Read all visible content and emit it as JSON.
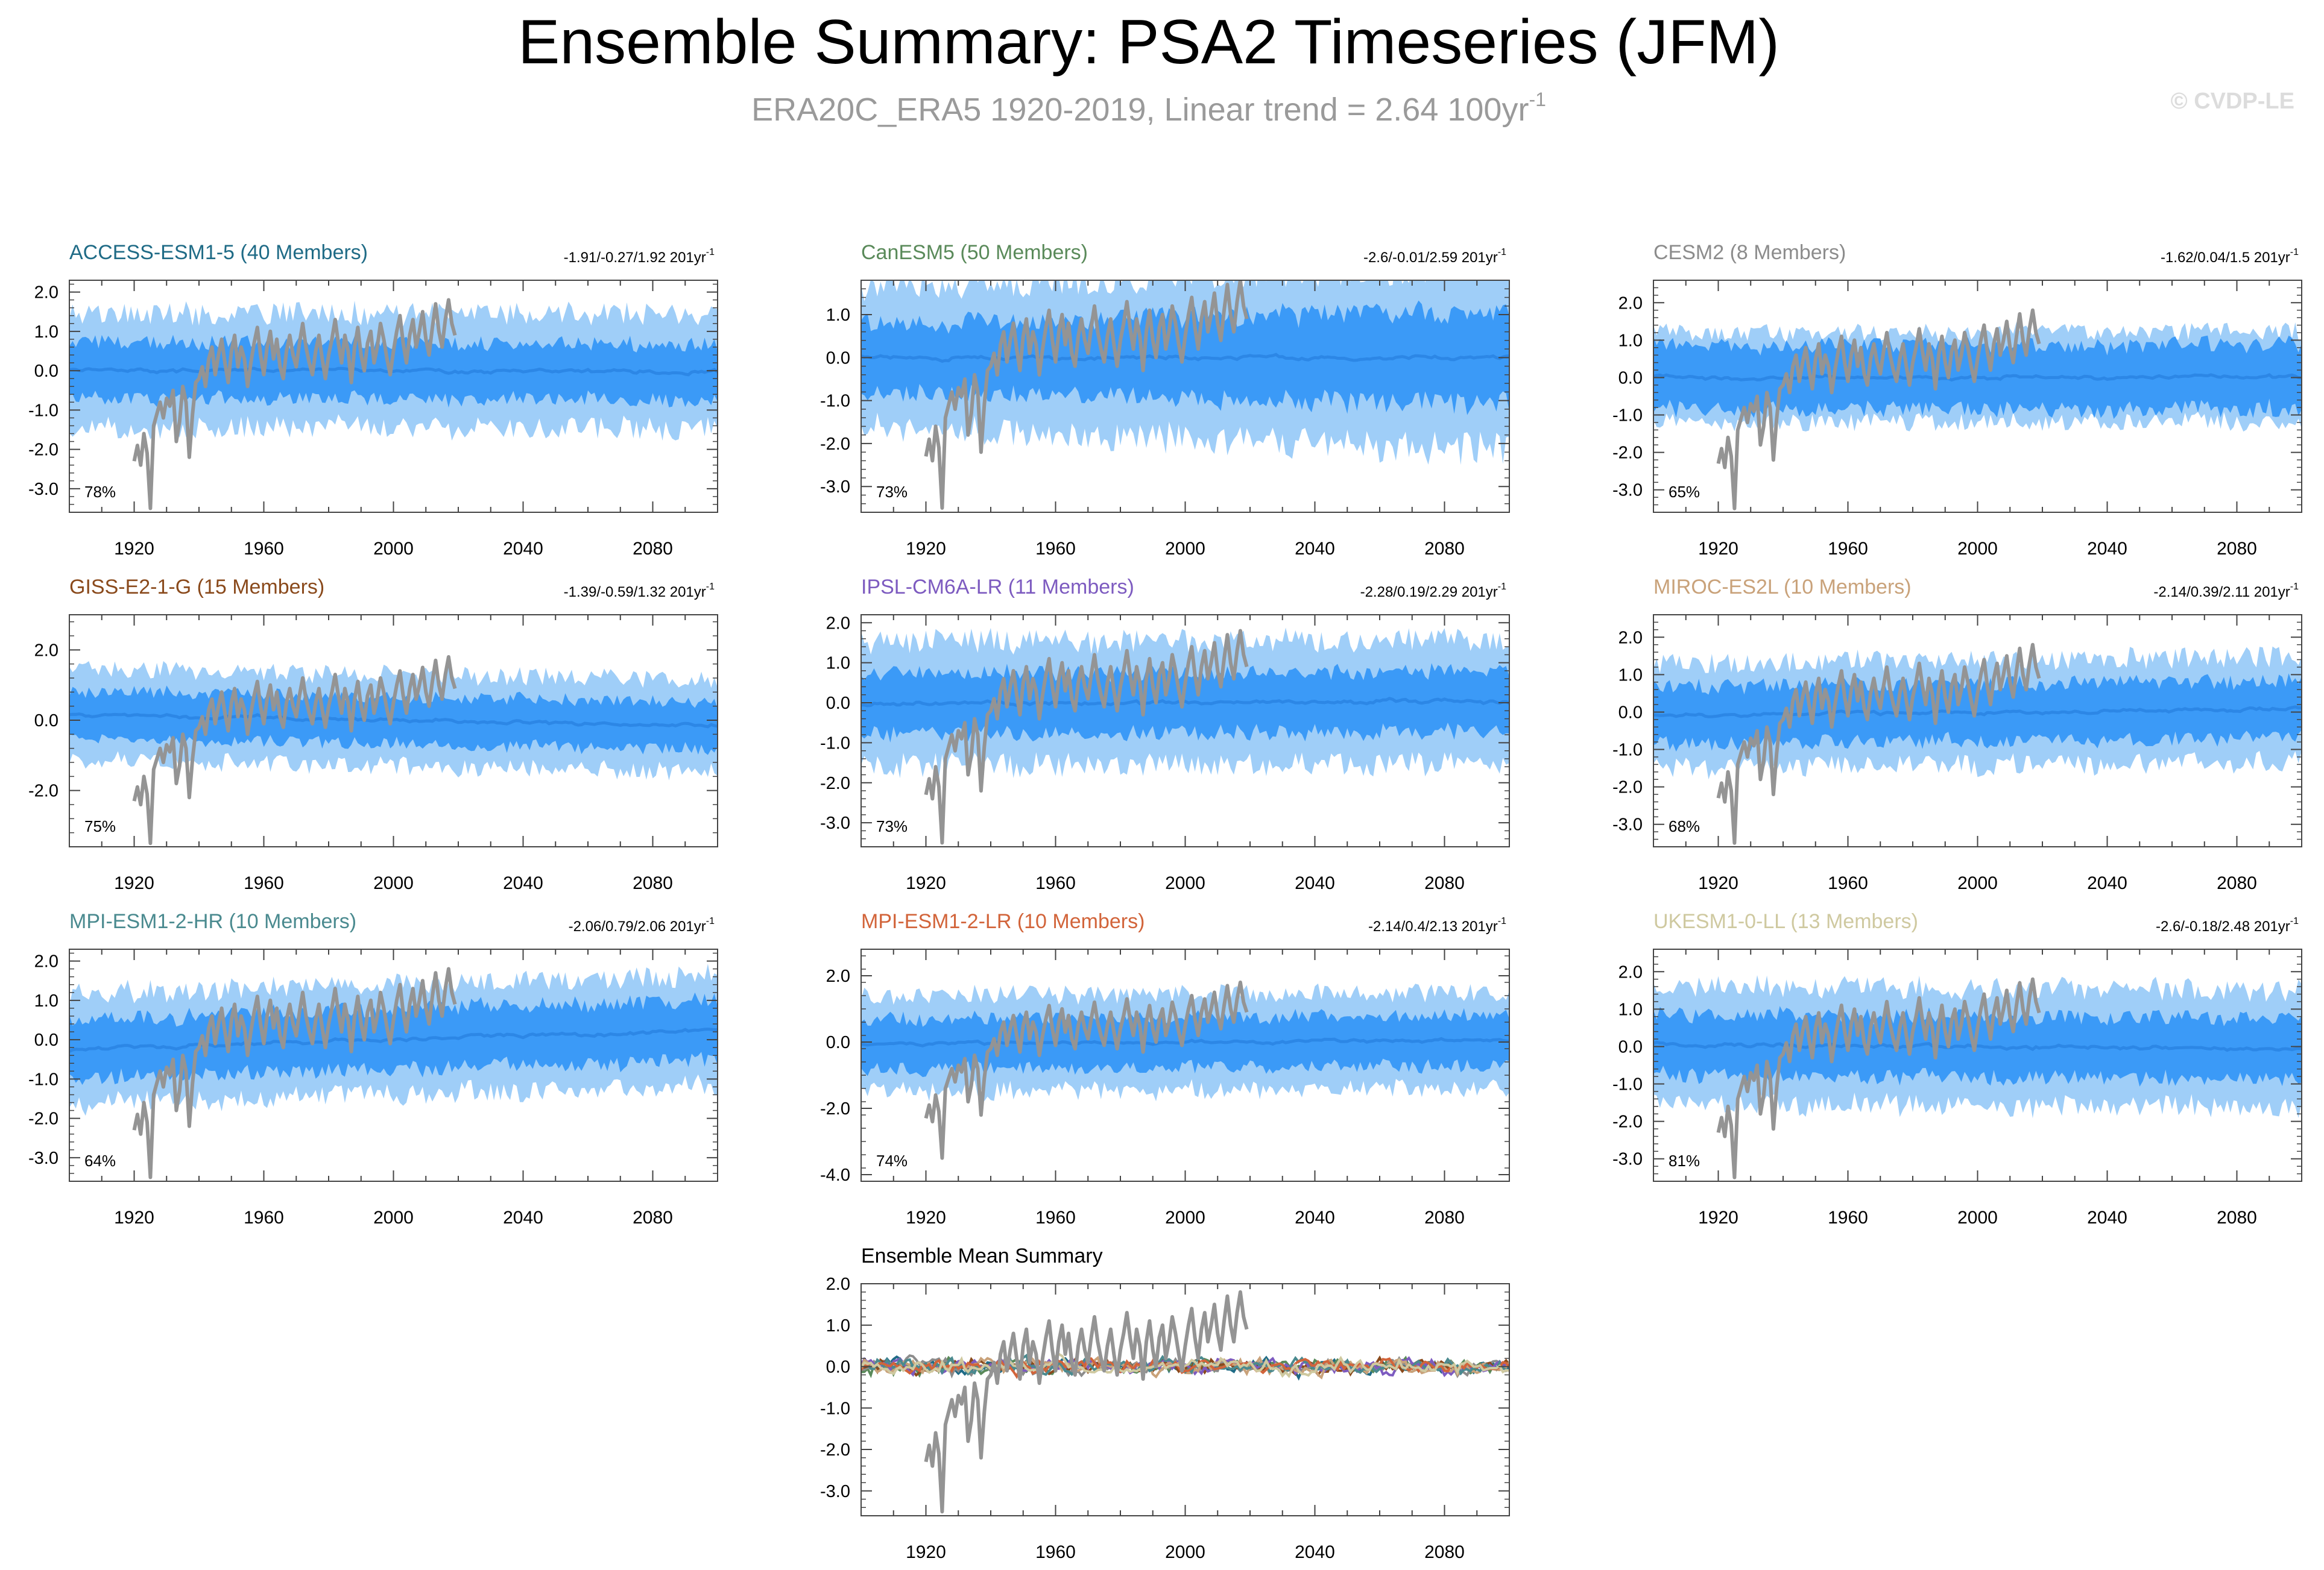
{
  "title": "Ensemble Summary: PSA2 Timeseries (JFM)",
  "subtitle": "ERA20C_ERA5 1920-2019, Linear trend = 2.64 100yr",
  "subtitle_sup": "-1",
  "copyright": "© CVDP-LE",
  "colors": {
    "outer_band": "#9fcef8",
    "inner_band": "#3b9af7",
    "mean_line": "#2c87e6",
    "obs": "#949494",
    "axis": "#444444"
  },
  "chart_data": [
    {
      "type": "area",
      "title": "ACCESS-ESM1-5 (40 Members)",
      "title_color": "#1f6b86",
      "trend": "-1.91/-0.27/1.92 201yr",
      "trend_sup": "-1",
      "percent": "78%",
      "ylim": [
        -3.6,
        2.3
      ],
      "yticks": [
        2.0,
        1.0,
        0.0,
        -1.0,
        -2.0,
        -3.0
      ],
      "ytick_labels": [
        "2.0",
        "1.0",
        "0.0",
        "-1.0",
        "-2.0",
        "-3.0"
      ],
      "xlim": [
        1900,
        2100
      ],
      "xticks": [
        1920,
        1960,
        2000,
        2040,
        2080
      ],
      "ens_trend": -0.1,
      "outer_width": 1.45,
      "inner_width": 0.75,
      "seed": 11
    },
    {
      "type": "area",
      "title": "CanESM5 (50 Members)",
      "title_color": "#5a8a5a",
      "trend": "-2.6/-0.01/2.59 201yr",
      "trend_sup": "-1",
      "percent": "73%",
      "ylim": [
        -3.6,
        1.8
      ],
      "yticks": [
        1.0,
        0.0,
        -1.0,
        -2.0,
        -3.0
      ],
      "ytick_labels": [
        "1.0",
        "0.0",
        "-1.0",
        "-2.0",
        "-3.0"
      ],
      "xlim": [
        1900,
        2100
      ],
      "xticks": [
        1920,
        1960,
        2000,
        2040,
        2080
      ],
      "ens_trend": 0.0,
      "outer_width": 1.6,
      "inner_width": 0.85,
      "seed": 23,
      "widen": 0.35
    },
    {
      "type": "area",
      "title": "CESM2 (8 Members)",
      "title_color": "#8c8c8c",
      "trend": "-1.62/0.04/1.5 201yr",
      "trend_sup": "-1",
      "percent": "65%",
      "ylim": [
        -3.6,
        2.6
      ],
      "yticks": [
        2.0,
        1.0,
        0.0,
        -1.0,
        -2.0,
        -3.0
      ],
      "ytick_labels": [
        "2.0",
        "1.0",
        "0.0",
        "-1.0",
        "-2.0",
        "-3.0"
      ],
      "xlim": [
        1900,
        2100
      ],
      "xticks": [
        1920,
        1960,
        2000,
        2040,
        2080
      ],
      "ens_trend": 0.0,
      "outer_width": 1.2,
      "inner_width": 0.9,
      "seed": 37
    },
    {
      "type": "area",
      "title": "GISS-E2-1-G (15 Members)",
      "title_color": "#8a4a1c",
      "trend": "-1.39/-0.59/1.32 201yr",
      "trend_sup": "-1",
      "percent": "75%",
      "ylim": [
        -3.6,
        3.0
      ],
      "yticks": [
        2.0,
        0.0,
        -2.0
      ],
      "ytick_labels": [
        "2.0",
        "0.0",
        "-2.0"
      ],
      "xlim": [
        1900,
        2100
      ],
      "xticks": [
        1920,
        1960,
        2000,
        2040,
        2080
      ],
      "ens_trend": -0.5,
      "outer_width": 1.3,
      "inner_width": 0.7,
      "seed": 41
    },
    {
      "type": "area",
      "title": "IPSL-CM6A-LR (11 Members)",
      "title_color": "#7d5bc0",
      "trend": "-2.28/0.19/2.29 201yr",
      "trend_sup": "-1",
      "percent": "73%",
      "ylim": [
        -3.6,
        2.2
      ],
      "yticks": [
        2.0,
        1.0,
        0.0,
        -1.0,
        -2.0,
        -3.0
      ],
      "ytick_labels": [
        "2.0",
        "1.0",
        "0.0",
        "-1.0",
        "-2.0",
        "-3.0"
      ],
      "xlim": [
        1900,
        2100
      ],
      "xticks": [
        1920,
        1960,
        2000,
        2040,
        2080
      ],
      "ens_trend": 0.1,
      "outer_width": 1.55,
      "inner_width": 0.8,
      "seed": 53
    },
    {
      "type": "area",
      "title": "MIROC-ES2L (10 Members)",
      "title_color": "#c9a27a",
      "trend": "-2.14/0.39/2.11 201yr",
      "trend_sup": "-1",
      "percent": "68%",
      "ylim": [
        -3.6,
        2.6
      ],
      "yticks": [
        2.0,
        1.0,
        0.0,
        -1.0,
        -2.0,
        -3.0
      ],
      "ytick_labels": [
        "2.0",
        "1.0",
        "0.0",
        "-1.0",
        "-2.0",
        "-3.0"
      ],
      "xlim": [
        1900,
        2100
      ],
      "xticks": [
        1920,
        1960,
        2000,
        2040,
        2080
      ],
      "ens_trend": 0.3,
      "outer_width": 1.4,
      "inner_width": 0.8,
      "seed": 67
    },
    {
      "type": "area",
      "title": "MPI-ESM1-2-HR (10 Members)",
      "title_color": "#4a8a8f",
      "trend": "-2.06/0.79/2.06 201yr",
      "trend_sup": "-1",
      "percent": "64%",
      "ylim": [
        -3.6,
        2.3
      ],
      "yticks": [
        2.0,
        1.0,
        0.0,
        -1.0,
        -2.0,
        -3.0
      ],
      "ytick_labels": [
        "2.0",
        "1.0",
        "0.0",
        "-1.0",
        "-2.0",
        "-3.0"
      ],
      "xlim": [
        1900,
        2100
      ],
      "xticks": [
        1920,
        1960,
        2000,
        2040,
        2080
      ],
      "ens_trend": 0.8,
      "outer_width": 1.4,
      "inner_width": 0.8,
      "seed": 71
    },
    {
      "type": "area",
      "title": "MPI-ESM1-2-LR (10 Members)",
      "title_color": "#d2643a",
      "trend": "-2.14/0.4/2.13 201yr",
      "trend_sup": "-1",
      "percent": "74%",
      "ylim": [
        -4.2,
        2.8
      ],
      "yticks": [
        2.0,
        0.0,
        -2.0,
        -4.0
      ],
      "ytick_labels": [
        "2.0",
        "0.0",
        "-2.0",
        "-4.0"
      ],
      "xlim": [
        1900,
        2100
      ],
      "xticks": [
        1920,
        1960,
        2000,
        2040,
        2080
      ],
      "ens_trend": 0.2,
      "outer_width": 1.45,
      "inner_width": 0.8,
      "seed": 83
    },
    {
      "type": "area",
      "title": "UKESM1-0-LL (13 Members)",
      "title_color": "#cfc9a0",
      "trend": "-2.6/-0.18/2.48 201yr",
      "trend_sup": "-1",
      "percent": "81%",
      "ylim": [
        -3.6,
        2.6
      ],
      "yticks": [
        2.0,
        1.0,
        0.0,
        -1.0,
        -2.0,
        -3.0
      ],
      "ytick_labels": [
        "2.0",
        "1.0",
        "0.0",
        "-1.0",
        "-2.0",
        "-3.0"
      ],
      "xlim": [
        1900,
        2100
      ],
      "xticks": [
        1920,
        1960,
        2000,
        2040,
        2080
      ],
      "ens_trend": -0.2,
      "outer_width": 1.55,
      "inner_width": 0.85,
      "seed": 97
    },
    {
      "type": "line",
      "title": "Ensemble Mean Summary",
      "title_color": "#000000",
      "trend": "",
      "trend_sup": "",
      "percent": "",
      "ylim": [
        -3.6,
        2.0
      ],
      "yticks": [
        2.0,
        1.0,
        0.0,
        -1.0,
        -2.0,
        -3.0
      ],
      "ytick_labels": [
        "2.0",
        "1.0",
        "0.0",
        "-1.0",
        "-2.0",
        "-3.0"
      ],
      "xlim": [
        1900,
        2100
      ],
      "xticks": [
        1920,
        1960,
        2000,
        2040,
        2080
      ],
      "series_colors": [
        "#1f6b86",
        "#5a8a5a",
        "#8c8c8c",
        "#8a4a1c",
        "#7d5bc0",
        "#c9a27a",
        "#4a8a8f",
        "#d2643a",
        "#cfc9a0"
      ],
      "seed": 5
    }
  ],
  "observed": {
    "name": "ERA20C_ERA5",
    "years": [
      1920,
      1921,
      1922,
      1923,
      1924,
      1925,
      1926,
      1927,
      1928,
      1929,
      1930,
      1931,
      1932,
      1933,
      1934,
      1935,
      1936,
      1937,
      1938,
      1939,
      1940,
      1941,
      1942,
      1943,
      1944,
      1945,
      1946,
      1947,
      1948,
      1949,
      1950,
      1951,
      1952,
      1953,
      1954,
      1955,
      1956,
      1957,
      1958,
      1959,
      1960,
      1961,
      1962,
      1963,
      1964,
      1965,
      1966,
      1967,
      1968,
      1969,
      1970,
      1971,
      1972,
      1973,
      1974,
      1975,
      1976,
      1977,
      1978,
      1979,
      1980,
      1981,
      1982,
      1983,
      1984,
      1985,
      1986,
      1987,
      1988,
      1989,
      1990,
      1991,
      1992,
      1993,
      1994,
      1995,
      1996,
      1997,
      1998,
      1999,
      2000,
      2001,
      2002,
      2003,
      2004,
      2005,
      2006,
      2007,
      2008,
      2009,
      2010,
      2011,
      2012,
      2013,
      2014,
      2015,
      2016,
      2017,
      2018,
      2019
    ],
    "values": [
      -2.3,
      -1.9,
      -2.4,
      -1.6,
      -2.1,
      -3.5,
      -1.4,
      -1.1,
      -0.8,
      -1.2,
      -0.7,
      -0.9,
      -0.5,
      -1.8,
      -1.3,
      -0.4,
      -0.8,
      -2.2,
      -1.1,
      -0.3,
      -0.2,
      0.1,
      -0.4,
      0.3,
      0.6,
      -0.1,
      0.4,
      0.8,
      0.2,
      -0.3,
      0.5,
      0.9,
      0.1,
      0.6,
      0.3,
      -0.4,
      0.2,
      0.7,
      1.1,
      0.4,
      -0.1,
      0.6,
      1.0,
      0.3,
      0.8,
      0.1,
      -0.2,
      0.5,
      0.9,
      0.4,
      0.1,
      0.7,
      1.2,
      0.6,
      0.2,
      -0.1,
      0.5,
      0.9,
      0.3,
      -0.2,
      0.4,
      0.8,
      1.3,
      0.7,
      0.2,
      0.9,
      0.5,
      -0.3,
      0.6,
      1.1,
      0.4,
      0.0,
      0.7,
      1.0,
      0.2,
      0.6,
      1.2,
      0.8,
      0.3,
      -0.1,
      0.5,
      1.0,
      1.4,
      0.7,
      0.2,
      0.9,
      1.3,
      0.6,
      1.0,
      1.5,
      0.8,
      0.4,
      1.1,
      1.7,
      1.0,
      0.6,
      1.3,
      1.8,
      1.2,
      0.9
    ]
  }
}
